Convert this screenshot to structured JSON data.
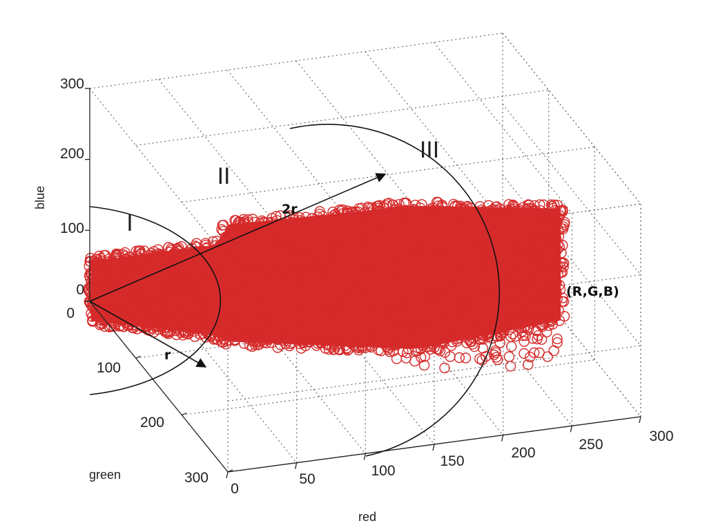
{
  "chart_data": {
    "type": "scatter",
    "projection": "3d",
    "xlabel": "red",
    "ylabel": "green",
    "zlabel": "blue",
    "xlim": [
      0,
      300
    ],
    "ylim": [
      0,
      300
    ],
    "zlim": [
      0,
      300
    ],
    "x_ticks": [
      "0",
      "50",
      "100",
      "150",
      "200",
      "250",
      "300"
    ],
    "y_ticks": [
      "0",
      "100",
      "200",
      "300"
    ],
    "z_ticks": [
      "0",
      "100",
      "200",
      "300"
    ],
    "grid": true,
    "marker": "open-circle",
    "marker_color": "#d62b2b",
    "point_cloud": {
      "red_range": [
        0,
        255
      ],
      "green_range": [
        0,
        255
      ],
      "blue_range": [
        0,
        255
      ]
    },
    "regions": [
      "I",
      "II",
      "III"
    ],
    "annotations": {
      "radius_label": "r",
      "double_radius_label": "2r",
      "point_label": "(R,G,B)"
    }
  }
}
